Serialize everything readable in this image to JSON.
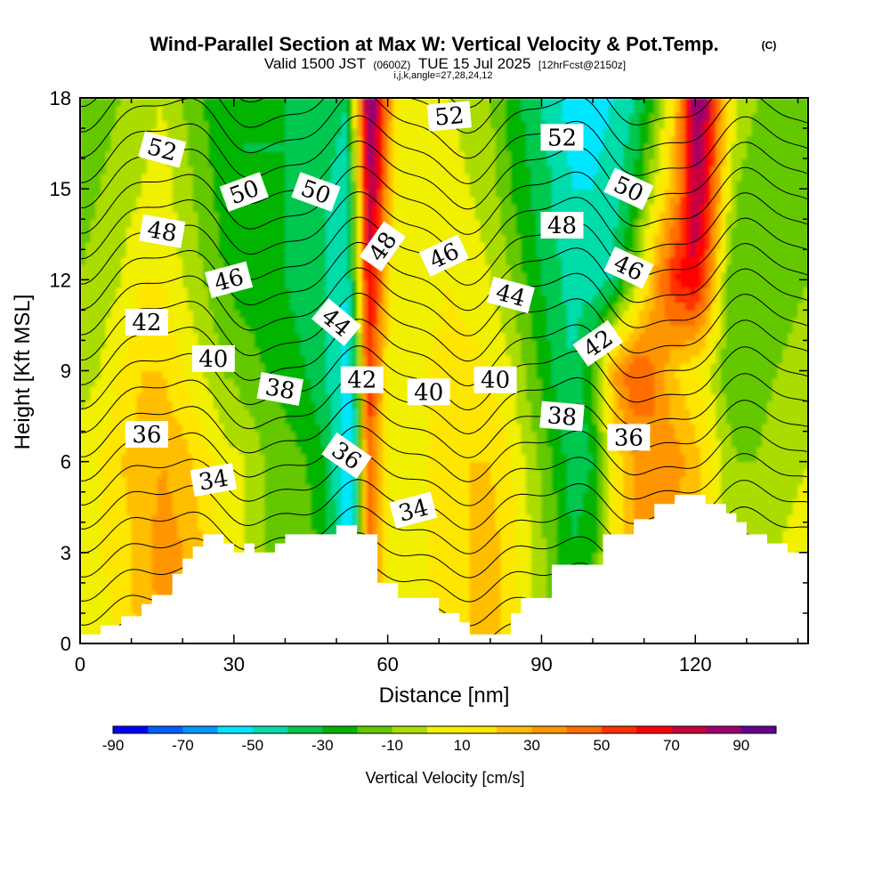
{
  "chart_data": {
    "type": "heatmap",
    "title": "Wind-Parallel Section at Max W: Vertical Velocity & Pot.Temp.",
    "title_mark": "(C)",
    "subtitle": {
      "valid": "Valid 1500 JST",
      "zulu": "(0600Z)",
      "date": "TUE 15 Jul 2025",
      "fcst": "[12hrFcst@2150z]",
      "indices": "i,j,k,angle=27,28,24,12"
    },
    "xlabel": "Distance [nm]",
    "ylabel": "Height [Kft MSL]",
    "xlim": [
      0,
      142
    ],
    "ylim": [
      0,
      18
    ],
    "xticks": [
      0,
      30,
      60,
      90,
      120
    ],
    "yticks": [
      0,
      3,
      6,
      9,
      12,
      15,
      18
    ],
    "x_minor_step": 10,
    "y_minor_step": 1,
    "colorbar": {
      "label": "Vertical Velocity [cm/s]",
      "levels": [
        -90,
        -80,
        -70,
        -60,
        -50,
        -40,
        -30,
        -20,
        -10,
        0,
        10,
        20,
        30,
        40,
        50,
        60,
        70,
        80,
        90,
        100
      ],
      "tick_labels": [
        "-90",
        "-70",
        "-50",
        "-30",
        "-10",
        "10",
        "30",
        "50",
        "70",
        "90"
      ],
      "colors": [
        "#0000ff",
        "#005fff",
        "#0096ff",
        "#00e6ff",
        "#00dcaa",
        "#00c850",
        "#00b400",
        "#64c800",
        "#aadc00",
        "#f0f000",
        "#ffe600",
        "#ffbe00",
        "#ff9600",
        "#ff6e00",
        "#ff3200",
        "#ff0000",
        "#c8003c",
        "#9b006e",
        "#64008c"
      ]
    },
    "velocity_field": {
      "columns_x": [
        0,
        4,
        8,
        12,
        16,
        20,
        24,
        28,
        32,
        36,
        40,
        44,
        48,
        52,
        54,
        56,
        58,
        60,
        62,
        64,
        68,
        72,
        76,
        80,
        84,
        88,
        92,
        96,
        100,
        104,
        108,
        112,
        116,
        120,
        122,
        124,
        126,
        128,
        132,
        136,
        142
      ],
      "rows_y": [
        0,
        3,
        6,
        9,
        12,
        15,
        18
      ],
      "values_cm_s": [
        [
          5,
          5,
          10,
          25,
          30,
          25,
          15,
          5,
          -5,
          -10,
          -5,
          0,
          -20,
          -60,
          -50,
          40,
          20,
          0,
          0,
          5,
          10,
          15,
          20,
          25,
          15,
          0,
          -15,
          -25,
          -20,
          10,
          25,
          30,
          25,
          15,
          10,
          5,
          0,
          -5,
          0,
          5,
          5
        ],
        [
          10,
          10,
          15,
          25,
          35,
          30,
          20,
          10,
          0,
          -10,
          -10,
          -15,
          -25,
          -60,
          -40,
          50,
          30,
          10,
          5,
          5,
          10,
          15,
          20,
          25,
          15,
          0,
          -15,
          -30,
          -25,
          15,
          30,
          30,
          25,
          20,
          15,
          5,
          -5,
          -10,
          -5,
          0,
          5
        ],
        [
          5,
          10,
          20,
          25,
          30,
          25,
          15,
          5,
          0,
          -10,
          -15,
          -20,
          -30,
          -60,
          -40,
          50,
          30,
          10,
          0,
          5,
          10,
          15,
          20,
          20,
          10,
          -5,
          -20,
          -35,
          -30,
          10,
          30,
          40,
          35,
          25,
          15,
          5,
          -5,
          -10,
          -10,
          -5,
          0
        ],
        [
          -5,
          0,
          10,
          20,
          20,
          10,
          0,
          -10,
          -15,
          -20,
          -25,
          -30,
          -40,
          -55,
          -30,
          60,
          40,
          10,
          0,
          5,
          10,
          15,
          15,
          10,
          0,
          -15,
          -30,
          -40,
          -20,
          30,
          50,
          40,
          20,
          10,
          5,
          -5,
          -15,
          -20,
          -15,
          -10,
          -5
        ],
        [
          -10,
          -5,
          0,
          10,
          10,
          0,
          -10,
          -20,
          -25,
          -25,
          -30,
          -35,
          -40,
          -50,
          -10,
          70,
          50,
          20,
          0,
          0,
          5,
          10,
          5,
          0,
          -10,
          -25,
          -35,
          -45,
          -45,
          -40,
          -10,
          30,
          60,
          70,
          50,
          20,
          -10,
          -20,
          -20,
          -15,
          -10
        ],
        [
          -15,
          -10,
          -5,
          0,
          5,
          -5,
          -15,
          -25,
          -30,
          -30,
          -30,
          -35,
          -40,
          -45,
          0,
          80,
          70,
          30,
          5,
          0,
          5,
          5,
          0,
          -5,
          -20,
          -30,
          -40,
          -50,
          -50,
          -45,
          -30,
          0,
          30,
          80,
          70,
          40,
          10,
          -10,
          -20,
          -20,
          -15
        ],
        [
          -20,
          -15,
          -10,
          -5,
          0,
          -10,
          -20,
          -30,
          -30,
          -30,
          -30,
          -30,
          -35,
          -40,
          20,
          90,
          80,
          40,
          10,
          0,
          0,
          0,
          -5,
          -10,
          -25,
          -35,
          -45,
          -55,
          -55,
          -50,
          -40,
          -20,
          20,
          90,
          80,
          50,
          20,
          0,
          -10,
          -15,
          -15
        ]
      ]
    },
    "terrain": {
      "x": [
        0,
        2,
        4,
        6,
        8,
        10,
        12,
        14,
        16,
        18,
        20,
        22,
        24,
        26,
        28,
        30,
        32,
        34,
        36,
        38,
        40,
        42,
        44,
        46,
        48,
        50,
        52,
        54,
        56,
        58,
        60,
        62,
        64,
        66,
        68,
        70,
        72,
        74,
        76,
        78,
        80,
        82,
        84,
        86,
        88,
        90,
        92,
        94,
        96,
        98,
        100,
        102,
        104,
        106,
        108,
        110,
        112,
        114,
        116,
        118,
        120,
        122,
        124,
        126,
        128,
        130,
        132,
        134,
        136,
        138,
        140,
        142
      ],
      "height_kft": [
        0.3,
        0.3,
        0.6,
        0.6,
        0.9,
        0.9,
        1.3,
        1.6,
        1.6,
        2.3,
        2.8,
        3.2,
        3.6,
        3.6,
        3.3,
        3.0,
        3.3,
        3.0,
        3.0,
        3.3,
        3.6,
        3.6,
        3.6,
        3.6,
        3.6,
        3.9,
        3.9,
        3.6,
        3.6,
        2.0,
        2.0,
        1.5,
        1.5,
        1.5,
        1.5,
        1.0,
        1.0,
        0.7,
        0.3,
        0.3,
        0.3,
        0.3,
        1.0,
        1.5,
        1.5,
        1.5,
        2.6,
        2.6,
        2.6,
        2.6,
        2.6,
        3.6,
        3.6,
        3.6,
        4.1,
        4.1,
        4.6,
        4.6,
        4.9,
        4.9,
        4.9,
        4.6,
        4.6,
        4.3,
        4.0,
        3.6,
        3.6,
        3.3,
        3.3,
        3.0,
        3.0,
        2.6
      ]
    },
    "theta_contours": {
      "levels_K": [
        32,
        33,
        34,
        35,
        36,
        37,
        38,
        39,
        40,
        41,
        42,
        43,
        44,
        45,
        46,
        47,
        48,
        49,
        50,
        51,
        52,
        53,
        54
      ],
      "labels": [
        {
          "text": "52",
          "x": 16,
          "y": 16.3,
          "angle": 15
        },
        {
          "text": "50",
          "x": 32,
          "y": 14.9,
          "angle": -20
        },
        {
          "text": "50",
          "x": 46,
          "y": 14.9,
          "angle": 20
        },
        {
          "text": "48",
          "x": 16,
          "y": 13.6,
          "angle": 10
        },
        {
          "text": "48",
          "x": 59,
          "y": 13.1,
          "angle": -55
        },
        {
          "text": "46",
          "x": 29,
          "y": 12.0,
          "angle": -15
        },
        {
          "text": "46",
          "x": 71,
          "y": 12.8,
          "angle": -25
        },
        {
          "text": "42",
          "x": 13,
          "y": 10.6,
          "angle": 0
        },
        {
          "text": "44",
          "x": 50,
          "y": 10.6,
          "angle": 40
        },
        {
          "text": "44",
          "x": 84,
          "y": 11.5,
          "angle": 15
        },
        {
          "text": "40",
          "x": 26,
          "y": 9.4,
          "angle": 0
        },
        {
          "text": "38",
          "x": 39,
          "y": 8.4,
          "angle": 10
        },
        {
          "text": "42",
          "x": 55,
          "y": 8.7,
          "angle": 0
        },
        {
          "text": "40",
          "x": 68,
          "y": 8.3,
          "angle": 0
        },
        {
          "text": "40",
          "x": 81,
          "y": 8.7,
          "angle": 0
        },
        {
          "text": "52",
          "x": 72,
          "y": 17.4,
          "angle": -5
        },
        {
          "text": "52",
          "x": 94,
          "y": 16.7,
          "angle": 0
        },
        {
          "text": "48",
          "x": 94,
          "y": 13.8,
          "angle": 0
        },
        {
          "text": "50",
          "x": 107,
          "y": 15.0,
          "angle": 25
        },
        {
          "text": "46",
          "x": 107,
          "y": 12.4,
          "angle": 25
        },
        {
          "text": "42",
          "x": 101,
          "y": 9.9,
          "angle": -35
        },
        {
          "text": "38",
          "x": 94,
          "y": 7.5,
          "angle": 5
        },
        {
          "text": "36",
          "x": 107,
          "y": 6.8,
          "angle": 0
        },
        {
          "text": "36",
          "x": 13,
          "y": 6.9,
          "angle": 0
        },
        {
          "text": "36",
          "x": 52,
          "y": 6.2,
          "angle": 35
        },
        {
          "text": "34",
          "x": 26,
          "y": 5.4,
          "angle": -10
        },
        {
          "text": "34",
          "x": 65,
          "y": 4.4,
          "angle": -15
        }
      ]
    }
  }
}
